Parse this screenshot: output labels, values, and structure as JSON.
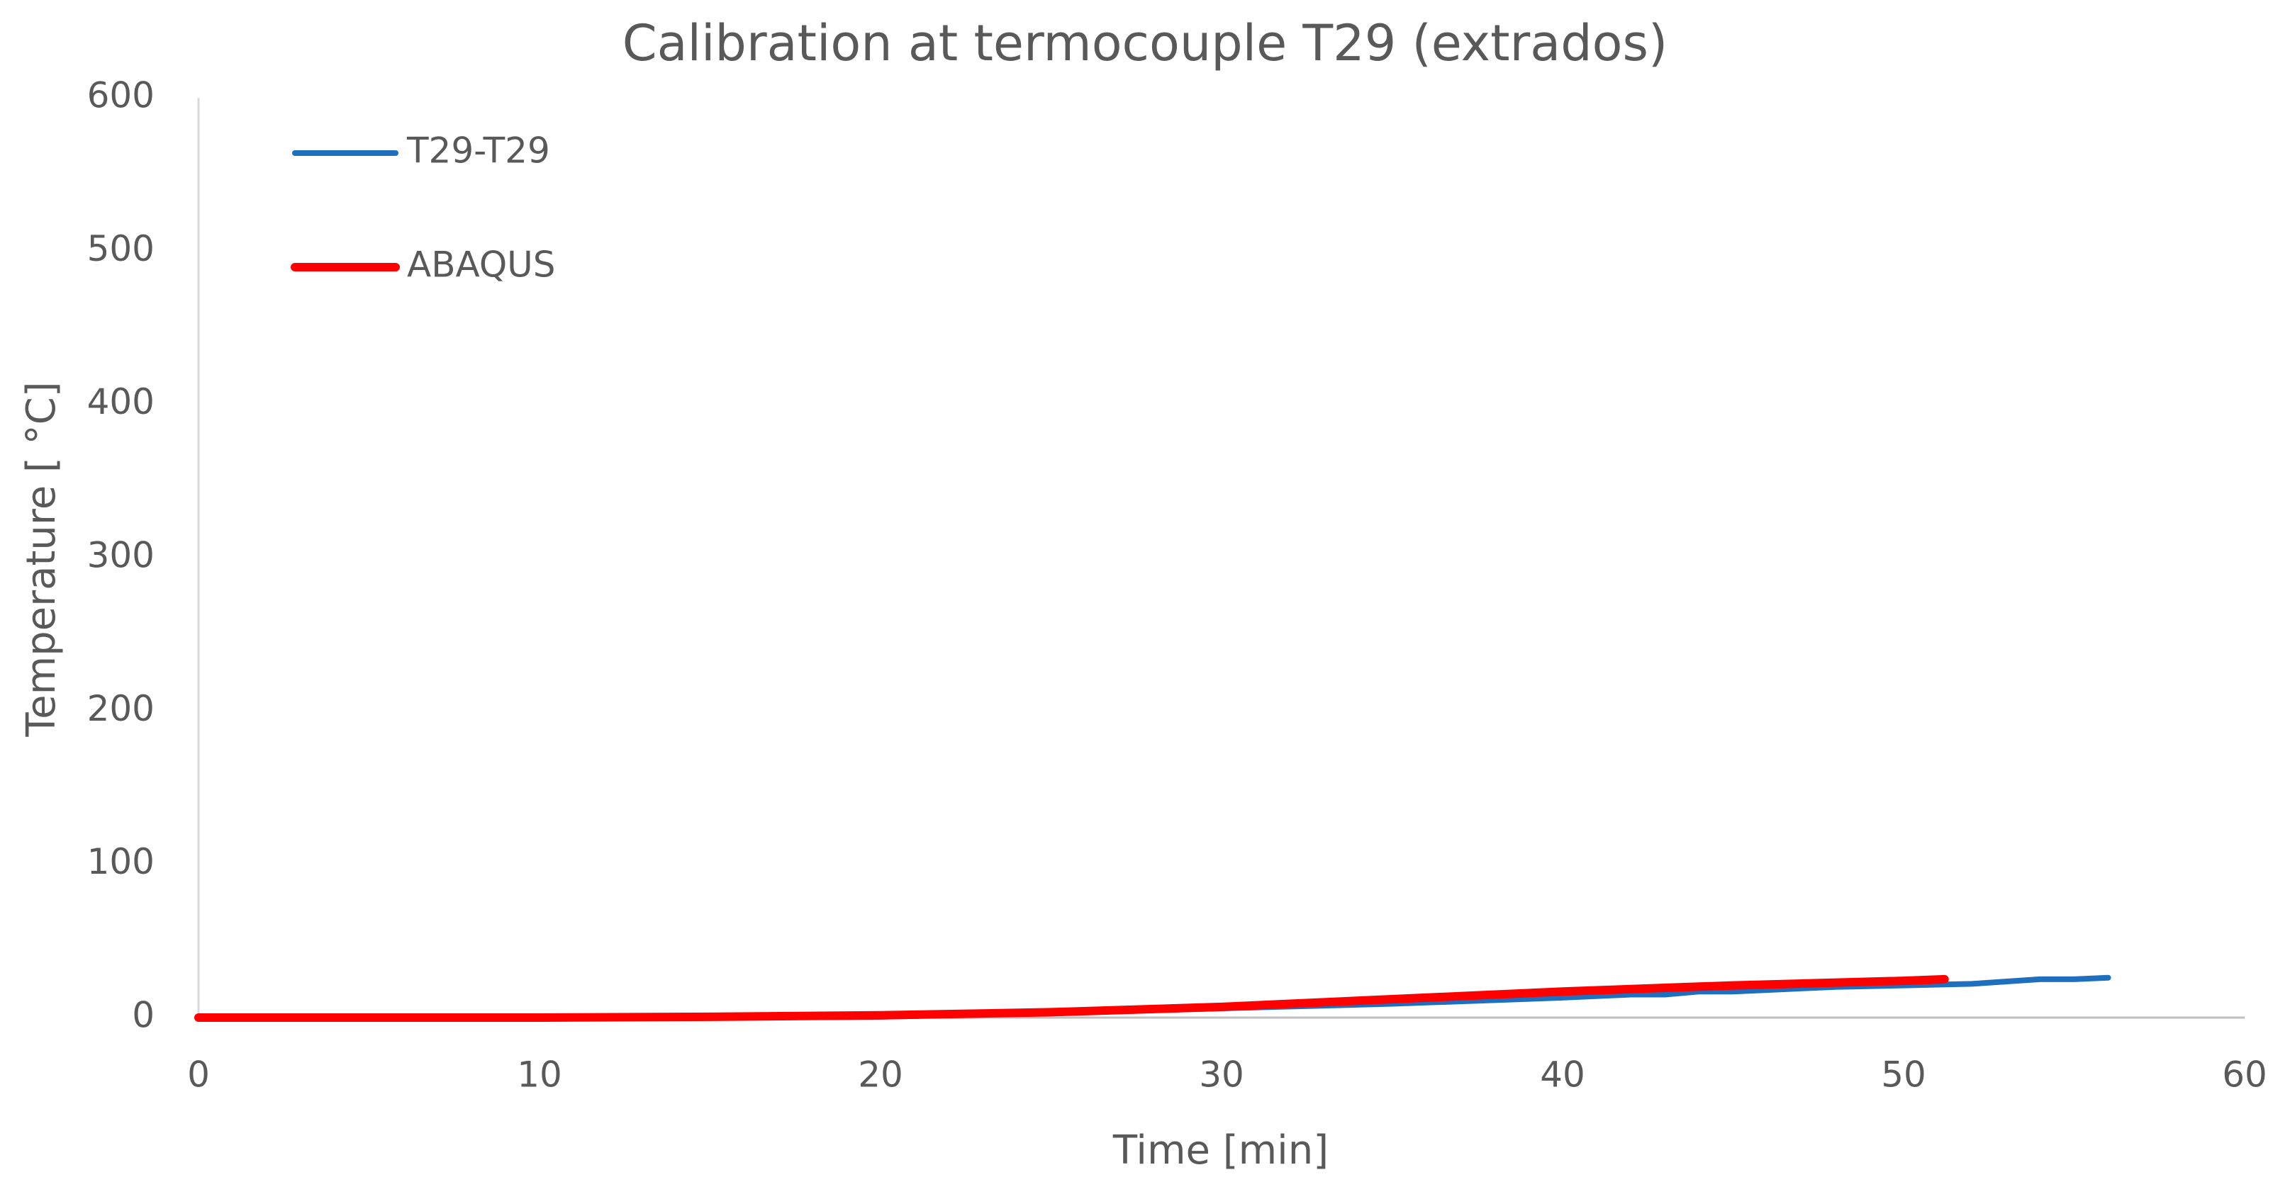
{
  "chart_data": {
    "type": "line",
    "title": "Calibration at termocouple T29 (extrados)",
    "x_label": "Time [min]",
    "y_label": "Temperature [ °C]",
    "xlim": [
      0,
      60
    ],
    "xticks": [
      0,
      10,
      20,
      30,
      40,
      50,
      60
    ],
    "ylim": [
      0,
      600
    ],
    "yticks": [
      0,
      100,
      200,
      300,
      400,
      500,
      600
    ],
    "grid": false,
    "legend": "upper left",
    "series": [
      {
        "name": "T29-T29",
        "color": "#1f6fbf",
        "x": [
          0,
          5,
          10,
          15,
          20,
          25,
          30,
          35,
          40,
          42,
          43,
          44,
          45,
          48,
          50,
          52,
          54,
          55,
          56
        ],
        "values": [
          0,
          0,
          0,
          0,
          0.5,
          3,
          6,
          9,
          13,
          15,
          15,
          17,
          17,
          20,
          21,
          22,
          25,
          25,
          26
        ]
      },
      {
        "name": "ABAQUS",
        "color": "#ff0000",
        "x": [
          0,
          5,
          10,
          15,
          20,
          25,
          30,
          35,
          40,
          45,
          50,
          51.2
        ],
        "values": [
          0,
          0,
          0,
          0.5,
          1.5,
          3.5,
          7,
          12,
          17,
          21,
          24,
          25
        ]
      }
    ]
  }
}
